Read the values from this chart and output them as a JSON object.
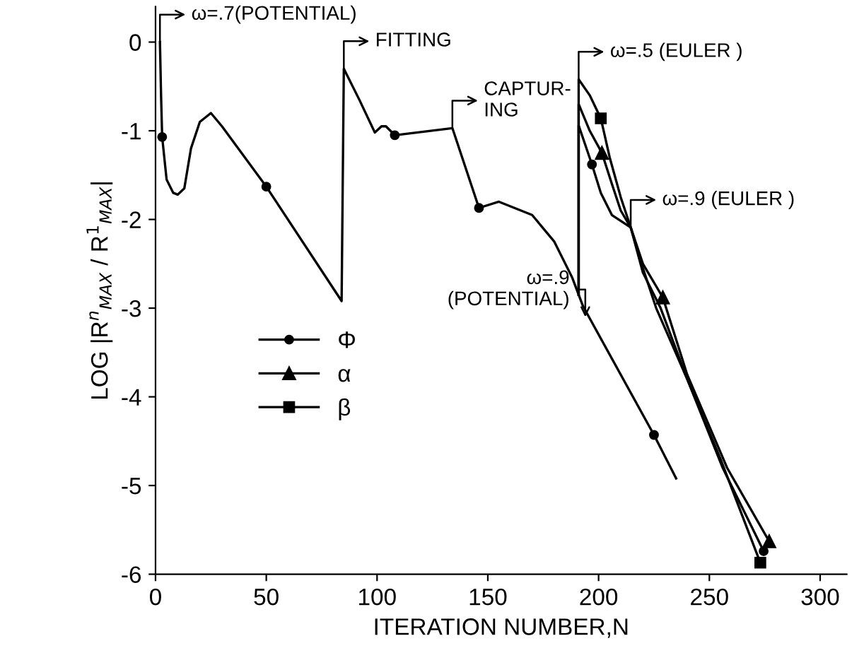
{
  "chart_data": {
    "type": "line",
    "xlabel": "ITERATION NUMBER,N",
    "ylabel": "LOG |R$^{n}$$_{MAX}$ / R$^{1}$$_{MAX}$|",
    "xlim": [
      0,
      312
    ],
    "ylim": [
      -6,
      0.4
    ],
    "xticks": [
      0,
      50,
      100,
      150,
      200,
      250,
      300
    ],
    "yticks": [
      0,
      -1,
      -2,
      -3,
      -4,
      -5,
      -6
    ],
    "grid": false,
    "legend": "left",
    "line_style": "solid",
    "series": [
      {
        "color": "#000000",
        "x": [
          2,
          2.5,
          3,
          5,
          8,
          10,
          13,
          16,
          20,
          25,
          30,
          50,
          84,
          85,
          92,
          99,
          102,
          104,
          106,
          108,
          134,
          146,
          155,
          170,
          180,
          188,
          193,
          225,
          235
        ],
        "values": [
          0,
          -0.6,
          -1.07,
          -1.55,
          -1.7,
          -1.72,
          -1.65,
          -1.2,
          -0.9,
          -0.8,
          -0.95,
          -1.63,
          -2.92,
          -0.3,
          -0.65,
          -1.02,
          -0.95,
          -0.95,
          -1.0,
          -1.05,
          -0.97,
          -1.87,
          -1.8,
          -1.95,
          -2.25,
          -2.65,
          -2.98,
          -4.43,
          -4.92
        ]
      },
      {
        "color": "#000000",
        "x": [
          191,
          191,
          196,
          201.5,
          206,
          210,
          214.5,
          220,
          229,
          240,
          258,
          277
        ],
        "values": [
          -2.85,
          -0.7,
          -1.0,
          -1.25,
          -1.6,
          -1.9,
          -2.09,
          -2.5,
          -2.88,
          -3.75,
          -4.8,
          -5.63
        ]
      },
      {
        "color": "#000000",
        "x": [
          191,
          191,
          196,
          201,
          205,
          210,
          214.5,
          220,
          228,
          240,
          255,
          273
        ],
        "values": [
          -2.85,
          -0.42,
          -0.6,
          -0.86,
          -1.3,
          -1.75,
          -2.09,
          -2.6,
          -3.0,
          -3.8,
          -4.7,
          -5.87
        ]
      },
      {
        "color": "#000000",
        "x": [
          191,
          191,
          197,
          201,
          206,
          214.5,
          220,
          226,
          240,
          256,
          274.5
        ],
        "values": [
          -2.85,
          -0.94,
          -1.38,
          -1.7,
          -1.95,
          -2.09,
          -2.55,
          -3.0,
          -3.8,
          -4.8,
          -5.74
        ]
      },
      {
        "name": "Φ",
        "type": "scatter",
        "marker": "circle",
        "color": "#000000",
        "x": [
          3,
          50,
          108,
          146,
          225,
          197,
          274.5
        ],
        "values": [
          -1.07,
          -1.63,
          -1.05,
          -1.87,
          -4.43,
          -1.38,
          -5.74
        ]
      },
      {
        "name": "α",
        "type": "scatter",
        "marker": "triangle",
        "color": "#000000",
        "x": [
          201.5,
          229,
          277
        ],
        "values": [
          -1.25,
          -2.88,
          -5.63
        ]
      },
      {
        "name": "β",
        "type": "scatter",
        "marker": "square",
        "color": "#000000",
        "x": [
          201,
          273
        ],
        "values": [
          -0.86,
          -5.87
        ]
      }
    ],
    "annotations": [
      {
        "text": "ω=.7(POTENTIAL)",
        "x": 2,
        "y": 0
      },
      {
        "text": "FITTING",
        "x": 85,
        "y": -0.3
      },
      {
        "text": "CAPTUR-\nING",
        "x": 134,
        "y": -0.97
      },
      {
        "text": "ω=.5 (EULER )",
        "x": 191,
        "y": -0.42
      },
      {
        "text": "ω=.9 (EULER )",
        "x": 214.5,
        "y": -2.09
      },
      {
        "text": "ω=.9\n(POTENTIAL)",
        "x": 194,
        "y": -3.1
      }
    ]
  }
}
